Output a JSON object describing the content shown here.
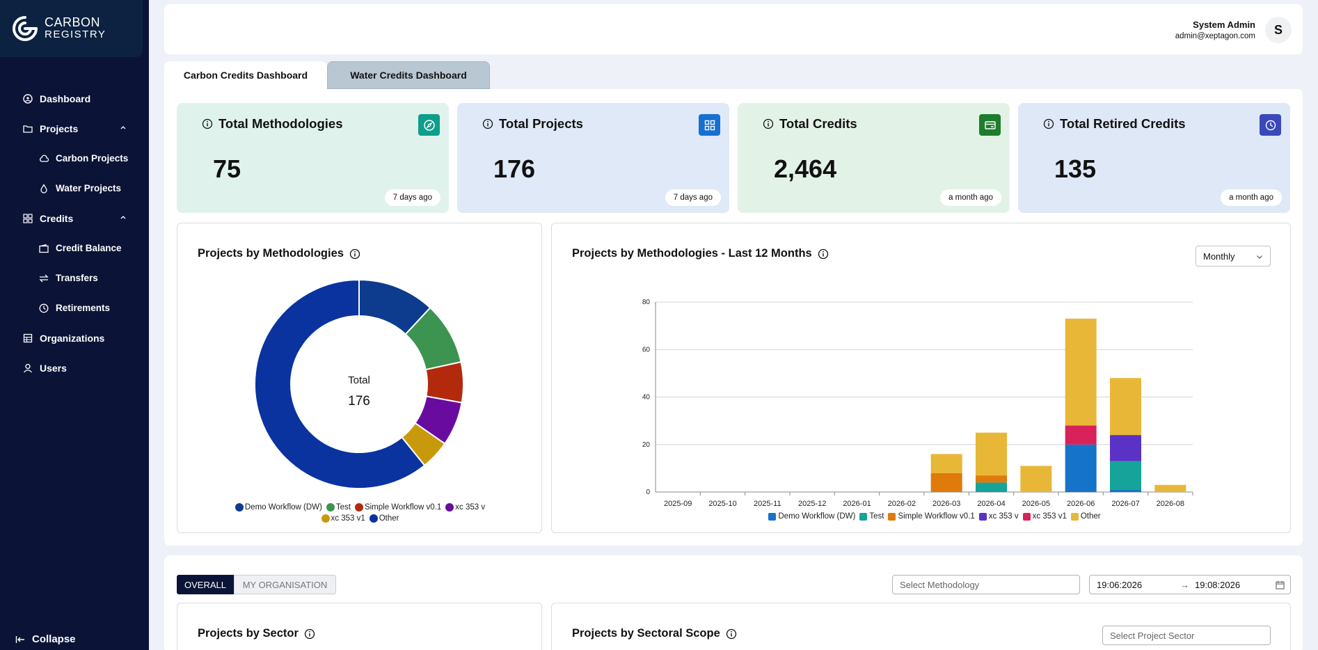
{
  "brand": {
    "line1": "CARBON",
    "line2": "REGISTRY"
  },
  "sidebar": {
    "items": [
      {
        "label": "Dashboard",
        "icon": "dashboard-icon"
      },
      {
        "label": "Projects",
        "icon": "folder-icon"
      },
      {
        "label": "Carbon Projects",
        "icon": "cloud-icon"
      },
      {
        "label": "Water Projects",
        "icon": "water-drop-icon"
      },
      {
        "label": "Credits",
        "icon": "grid-icon"
      },
      {
        "label": "Credit Balance",
        "icon": "wallet-icon"
      },
      {
        "label": "Transfers",
        "icon": "transfer-icon"
      },
      {
        "label": "Retirements",
        "icon": "clock-icon"
      },
      {
        "label": "Organizations",
        "icon": "building-icon"
      },
      {
        "label": "Users",
        "icon": "user-icon"
      }
    ],
    "collapse_label": "Collapse"
  },
  "header": {
    "user_name": "System Admin",
    "user_email": "admin@xeptagon.com",
    "avatar_letter": "S"
  },
  "tabs": [
    {
      "label": "Carbon Credits Dashboard",
      "active": true
    },
    {
      "label": "Water Credits Dashboard",
      "active": false
    }
  ],
  "stats": [
    {
      "title": "Total Methodologies",
      "value": "75",
      "time": "7 days ago",
      "bg": "#e0f2ec",
      "icon_bg": "#0f9d8c",
      "icon": "compass-icon"
    },
    {
      "title": "Total Projects",
      "value": "176",
      "time": "7 days ago",
      "bg": "#dfe9f7",
      "icon_bg": "#1670d1",
      "icon": "grid-icon"
    },
    {
      "title": "Total Credits",
      "value": "2,464",
      "time": "a month ago",
      "bg": "#e3f2e6",
      "icon_bg": "#1e7d2c",
      "icon": "card-icon"
    },
    {
      "title": "Total Retired Credits",
      "value": "135",
      "time": "a month ago",
      "bg": "#dfe8f6",
      "icon_bg": "#3a48b9",
      "icon": "clock-icon"
    }
  ],
  "donut": {
    "title": "Projects by Methodologies",
    "center_label": "Total",
    "center_value": "176"
  },
  "bar": {
    "title": "Projects by Methodologies - Last 12 Months",
    "period": "Monthly"
  },
  "chart_data": [
    {
      "type": "pie",
      "categories": [
        "Demo Workflow (DW)",
        "Test",
        "Simple Workflow v0.1",
        "xc 353 v",
        "xc 353 v1",
        "Other"
      ],
      "values": [
        21,
        17,
        11,
        12,
        8,
        107
      ],
      "colors": [
        "#0d3b8e",
        "#3c9450",
        "#b22a0b",
        "#6a0ba0",
        "#c89a0b",
        "#0a33a0"
      ],
      "total": 176,
      "legend": "bottom"
    },
    {
      "type": "bar",
      "stacked": true,
      "categories": [
        "2025-09",
        "2025-10",
        "2025-11",
        "2025-12",
        "2026-01",
        "2026-02",
        "2026-03",
        "2026-04",
        "2026-05",
        "2026-06",
        "2026-07",
        "2026-08"
      ],
      "series": [
        {
          "name": "Demo Workflow (DW)",
          "color": "#1574c9",
          "values": [
            0,
            0,
            0,
            0,
            0,
            0,
            0,
            0,
            0,
            20,
            1,
            0
          ]
        },
        {
          "name": "Test",
          "color": "#15a39a",
          "values": [
            0,
            0,
            0,
            0,
            0,
            0,
            0,
            4,
            0,
            0,
            12,
            0
          ]
        },
        {
          "name": "Simple Workflow v0.1",
          "color": "#e07a0b",
          "values": [
            0,
            0,
            0,
            0,
            0,
            0,
            8,
            3,
            0,
            0,
            0,
            0
          ]
        },
        {
          "name": "xc 353 v",
          "color": "#5b32c6",
          "values": [
            0,
            0,
            0,
            0,
            0,
            0,
            0,
            0,
            0,
            0,
            11,
            0
          ]
        },
        {
          "name": "xc 353 v1",
          "color": "#d9225a",
          "values": [
            0,
            0,
            0,
            0,
            0,
            0,
            0,
            0,
            0,
            8,
            0,
            0
          ]
        },
        {
          "name": "Other",
          "color": "#e8b738",
          "values": [
            0,
            0,
            0,
            0,
            0,
            0,
            8,
            18,
            11,
            45,
            24,
            3
          ]
        }
      ],
      "ylim": [
        0,
        80
      ],
      "yticks": [
        0,
        20,
        40,
        60,
        80
      ],
      "grid": true,
      "legend": "bottom"
    }
  ],
  "filters": {
    "overall_label": "OVERALL",
    "my_org_label": "MY ORGANISATION",
    "methodology_placeholder": "Select Methodology",
    "date_from": "19:06:2026",
    "date_to": "19:08:2026"
  },
  "bottom_cards": {
    "sector_title": "Projects by Sector",
    "scope_title": "Projects by Sectoral Scope",
    "sector_placeholder": "Select Project Sector"
  }
}
